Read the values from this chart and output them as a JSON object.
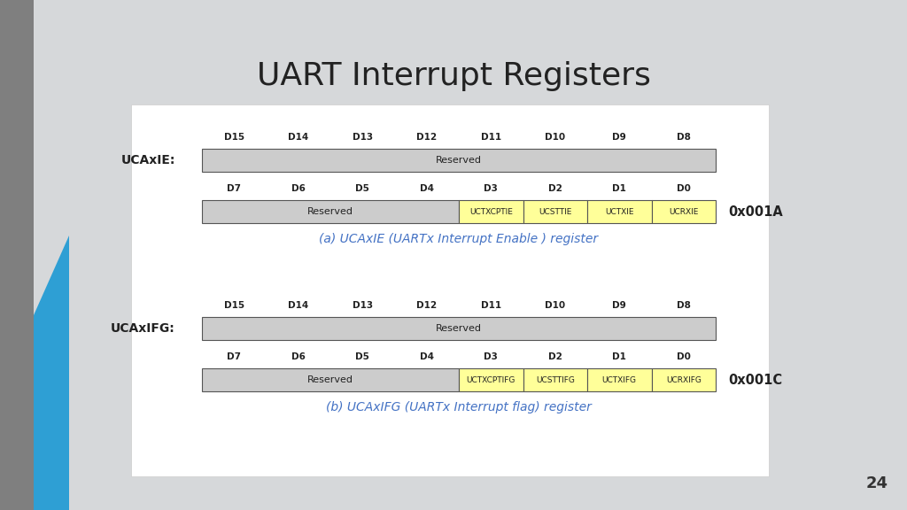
{
  "title": "UART Interrupt Registers",
  "title_fontsize": 26,
  "bg_color": "#d6d8da",
  "white_panel_color": "#f0f0f0",
  "slide_number": "24",
  "registers": [
    {
      "label": "UCAxIE:",
      "address": "0x001A",
      "caption": "(a) UCAxIE (UARTx Interrupt Enable ) register",
      "high_bits": {
        "headers": [
          "D15",
          "D14",
          "D13",
          "D12",
          "D11",
          "D10",
          "D9",
          "D8"
        ],
        "cells": [
          {
            "text": "Reserved",
            "span": 8,
            "color": "#cccccc"
          }
        ]
      },
      "low_bits": {
        "headers": [
          "D7",
          "D6",
          "D5",
          "D4",
          "D3",
          "D2",
          "D1",
          "D0"
        ],
        "cells": [
          {
            "text": "Reserved",
            "span": 4,
            "color": "#cccccc"
          },
          {
            "text": "UCTXCPTIE",
            "span": 1,
            "color": "#ffff99"
          },
          {
            "text": "UCSTTIE",
            "span": 1,
            "color": "#ffff99"
          },
          {
            "text": "UCTXIE",
            "span": 1,
            "color": "#ffff99"
          },
          {
            "text": "UCRXIE",
            "span": 1,
            "color": "#ffff99"
          }
        ]
      }
    },
    {
      "label": "UCAxIFG:",
      "address": "0x001C",
      "caption": "(b) UCAxIFG (UARTx Interrupt flag) register",
      "high_bits": {
        "headers": [
          "D15",
          "D14",
          "D13",
          "D12",
          "D11",
          "D10",
          "D9",
          "D8"
        ],
        "cells": [
          {
            "text": "Reserved",
            "span": 8,
            "color": "#cccccc"
          }
        ]
      },
      "low_bits": {
        "headers": [
          "D7",
          "D6",
          "D5",
          "D4",
          "D3",
          "D2",
          "D1",
          "D0"
        ],
        "cells": [
          {
            "text": "Reserved",
            "span": 4,
            "color": "#cccccc"
          },
          {
            "text": "UCTXCPTIFG",
            "span": 1,
            "color": "#ffff99"
          },
          {
            "text": "UCSTTIFG",
            "span": 1,
            "color": "#ffff99"
          },
          {
            "text": "UCTXIFG",
            "span": 1,
            "color": "#ffff99"
          },
          {
            "text": "UCRXIFG",
            "span": 1,
            "color": "#ffff99"
          }
        ]
      }
    }
  ],
  "caption_color": "#4472c4",
  "caption_fontsize": 9,
  "label_fontsize": 10,
  "header_fontsize": 7.5,
  "cell_fontsize": 6.5,
  "address_fontsize": 10.5,
  "gray_bar_color": "#7f7f7f",
  "blue_bar_color": "#2e9fd4"
}
